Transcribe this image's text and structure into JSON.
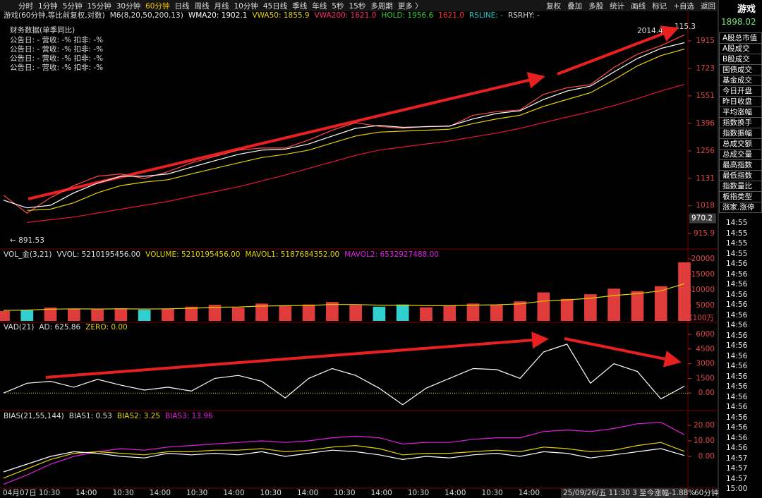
{
  "toolbar": {
    "periods": [
      "分时",
      "1分钟",
      "5分钟",
      "15分钟",
      "30分钟",
      "60分钟",
      "日线",
      "周线",
      "月线",
      "10分钟",
      "45日线",
      "季线",
      "年线",
      "5秒",
      "15秒",
      "多周期",
      "更多 〉"
    ],
    "tools": [
      "复权",
      "叠加",
      "多股",
      "统计",
      "画线",
      "标记",
      "+自选",
      "返回"
    ]
  },
  "chart_data": [
    {
      "type": "line",
      "title": "游戏(60分钟,等比前复权,对数)",
      "legend": [
        {
          "text": "M6(8,20,50,200,13)",
          "color": "#dddddd"
        },
        {
          "text": "WMA20: 1902.1",
          "color": "#ffffff"
        },
        {
          "text": "VWA50: 1855.9",
          "color": "#e6d200"
        },
        {
          "text": "VWA200: 1621.0",
          "color": "#ff2a6a"
        },
        {
          "text": "HOLD: 1956.6",
          "color": "#33cc33"
        },
        {
          "text": "1621.0",
          "color": "#ff3030"
        },
        {
          "text": "RSLINE: -",
          "color": "#20c8c8"
        },
        {
          "text": "RSRHY: -",
          "color": "#dddddd"
        }
      ],
      "finance": {
        "title": "财务数据(单季同比)",
        "rows": [
          "公告日: -    营收: -%    扣非: -%",
          "公告日: -    营收: -%    扣非: -%",
          "公告日: -    营收: -%    扣非: -%",
          "公告日: -    营收: -%    扣非: -%"
        ]
      },
      "series": [
        {
          "color": "#ff4a4a",
          "values": [
            1060,
            990,
            1050,
            1100,
            1140,
            1150,
            1130,
            1160,
            1200,
            1230,
            1260,
            1270,
            1270,
            1310,
            1360,
            1400,
            1380,
            1370,
            1380,
            1380,
            1440,
            1460,
            1470,
            1560,
            1600,
            1620,
            1730,
            1820,
            1880,
            1960
          ]
        },
        {
          "color": "#ffffff",
          "values": [
            1040,
            1010,
            1020,
            1070,
            1110,
            1140,
            1140,
            1150,
            1180,
            1210,
            1240,
            1260,
            1265,
            1290,
            1330,
            1370,
            1385,
            1375,
            1378,
            1382,
            1420,
            1450,
            1465,
            1530,
            1580,
            1610,
            1700,
            1790,
            1860,
            1902.1
          ]
        },
        {
          "color": "#e6d200",
          "values": [
            null,
            1000,
            1005,
            1030,
            1070,
            1100,
            1115,
            1125,
            1150,
            1175,
            1200,
            1225,
            1240,
            1260,
            1295,
            1330,
            1350,
            1355,
            1360,
            1365,
            1395,
            1420,
            1440,
            1490,
            1530,
            1570,
            1650,
            1740,
            1810,
            1855.9
          ]
        },
        {
          "color": "#e8143c",
          "values": [
            null,
            955,
            965,
            975,
            990,
            1005,
            1020,
            1035,
            1055,
            1075,
            1095,
            1120,
            1145,
            1175,
            1205,
            1235,
            1260,
            1275,
            1290,
            1305,
            1325,
            1345,
            1370,
            1400,
            1430,
            1460,
            1495,
            1535,
            1580,
            1621
          ]
        }
      ],
      "ylim": [
        865,
        2145
      ],
      "log": true,
      "yticks": [
        1915,
        1723,
        1551,
        1396,
        1256,
        1131,
        1018,
        915.9
      ],
      "annotations": {
        "high": "2014.4",
        "high2": "115.3",
        "low": "← 891.53"
      },
      "price_marker": {
        "value": 970.2,
        "label": "970.2"
      }
    },
    {
      "type": "bar",
      "title": "VOL_金(3,21)",
      "legend": [
        {
          "text": "VVOL: 5210195456.00",
          "color": "#dddddd"
        },
        {
          "text": "VOLUME: 5210195456.00",
          "color": "#e6d200"
        },
        {
          "text": "MAVOL1: 5187684352.00",
          "color": "#e6d200"
        },
        {
          "text": "MAVOL2: 6532927488.00",
          "color": "#e020e0"
        }
      ],
      "up_color": "#e03c3c",
      "down_color": "#30d0d0",
      "values": [
        3200,
        3600,
        4300,
        3900,
        3700,
        4100,
        3600,
        3900,
        4600,
        5200,
        4300,
        5600,
        4900,
        5300,
        6100,
        5100,
        4600,
        5300,
        4400,
        4900,
        5600,
        5100,
        6300,
        9200,
        7100,
        8600,
        10400,
        9600,
        11200,
        18900
      ],
      "series": [
        {
          "color": "#e6d200",
          "values": [
            3400,
            3500,
            3800,
            3900,
            3850,
            3900,
            3850,
            3900,
            4100,
            4400,
            4500,
            4800,
            4900,
            5000,
            5300,
            5300,
            5100,
            5100,
            4900,
            4900,
            5100,
            5200,
            5500,
            6400,
            6800,
            7300,
            8200,
            8800,
            9700,
            12000
          ]
        }
      ],
      "ylim": [
        0,
        20000
      ],
      "yticks": [
        20000,
        15000,
        10000,
        5000
      ],
      "unit": "X100万"
    },
    {
      "type": "line",
      "title": "VAD(21)",
      "legend": [
        {
          "text": "AD: 625.86",
          "color": "#dddddd"
        },
        {
          "text": "ZERO: 0.00",
          "color": "#e6d200"
        }
      ],
      "series": [
        {
          "color": "#ffffff",
          "values": [
            0,
            1000,
            1200,
            600,
            1400,
            800,
            300,
            600,
            200,
            1500,
            1800,
            1200,
            -500,
            1500,
            2500,
            1800,
            500,
            -1200,
            500,
            1500,
            2500,
            2400,
            1500,
            4200,
            5000,
            1000,
            3000,
            2200,
            -600,
            700
          ]
        }
      ],
      "zero_color": "#e6d200",
      "ylim": [
        -1500,
        6000
      ],
      "yticks": [
        6000,
        4500,
        3000,
        1500,
        {
          "value": 0,
          "label": "0.00"
        }
      ]
    },
    {
      "type": "line",
      "title": "BIAS(21,55,144)",
      "legend": [
        {
          "text": "BIAS1: 0.53",
          "color": "#dddddd"
        },
        {
          "text": "BIAS2: 3.25",
          "color": "#e6d200"
        },
        {
          "text": "BIAS3: 13.96",
          "color": "#e020e0"
        }
      ],
      "series": [
        {
          "color": "#e020e0",
          "values": [
            -18,
            -12,
            -5,
            0,
            3,
            5,
            4,
            6,
            7,
            8,
            9,
            10,
            9,
            10,
            12,
            13,
            12,
            8,
            9,
            9,
            11,
            12,
            12,
            16,
            17,
            16,
            18,
            21,
            22,
            13.96
          ]
        },
        {
          "color": "#e6d200",
          "values": [
            -14,
            -8,
            -2,
            2,
            3,
            2,
            1,
            3,
            3,
            4,
            4,
            5,
            3,
            4,
            6,
            7,
            5,
            1,
            2,
            2,
            3,
            4,
            3,
            6,
            5,
            3,
            4,
            7,
            9,
            3.25
          ]
        },
        {
          "color": "#ffffff",
          "values": [
            -10,
            -5,
            0,
            3,
            2,
            0,
            -1,
            2,
            1,
            2,
            1,
            3,
            0,
            2,
            4,
            3,
            1,
            -2,
            0,
            -1,
            1,
            2,
            0,
            3,
            2,
            -1,
            1,
            3,
            5,
            0.53
          ]
        }
      ],
      "ylim": [
        -20,
        22
      ],
      "yticks": [
        {
          "value": 20,
          "label": "20.00"
        },
        {
          "value": 10,
          "label": "10.00"
        },
        {
          "value": 0,
          "label": "0.00"
        }
      ]
    }
  ],
  "time_axis": {
    "labels": [
      "04月07日",
      "10:30",
      "14:00",
      "10:30",
      "14:00",
      "10:30",
      "14:00",
      "10:30",
      "14:00",
      "10:30",
      "14:00",
      "10:30",
      "14:00",
      "10:30",
      "14:00"
    ],
    "status": "25/09/26/五 11:30 3 至今涨幅-1.88%",
    "period": "60分钟"
  },
  "sidebar": {
    "name": "游戏",
    "price": "1898.02",
    "items": [
      "A股总市值",
      "A股成交",
      "B股成交",
      "国债成交",
      "基金成交",
      "今日开盘",
      "昨日收盘",
      "平均涨幅",
      "指数换手",
      "指数振幅",
      "总成交额",
      "总成交量",
      "最高指数",
      "最低指数",
      "指数量比",
      "板指类型",
      "涨家.涨停"
    ],
    "times": [
      "14:55",
      "14:55",
      "14:55",
      "14:55",
      "14:56",
      "14:56",
      "14:56",
      "14:56",
      "14:56",
      "14:56",
      "14:56",
      "14:56",
      "14:56",
      "14:56",
      "14:56",
      "14:56",
      "14:56",
      "14:56",
      "14:56",
      "14:56",
      "14:56",
      "14:56",
      "14:56",
      "14:57",
      "14:57",
      "14:57",
      "15:00"
    ]
  }
}
